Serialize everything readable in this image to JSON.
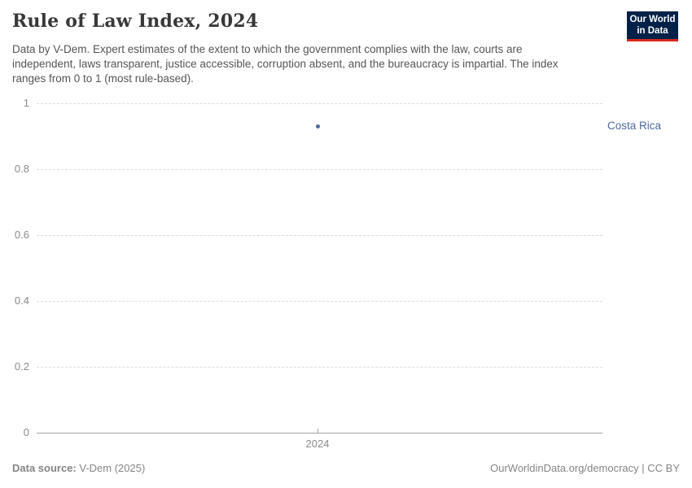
{
  "header": {
    "title": "Rule of Law Index, 2024",
    "subtitle": "Data by V-Dem. Expert estimates of the extent to which the government complies with the law, courts are independent, laws transparent, justice accessible, corruption absent, and the bureaucracy is impartial. The index ranges from 0 to 1 (most rule-based).",
    "logo": {
      "line1": "Our World",
      "line2": "in Data",
      "bg_color": "#002147",
      "accent_color": "#d9281f"
    }
  },
  "chart_data": {
    "type": "scatter",
    "title": "Rule of Law Index, 2024",
    "x": [
      2024
    ],
    "xticklabels": [
      "2024"
    ],
    "series": [
      {
        "name": "Costa Rica",
        "values": [
          0.93
        ],
        "color": "#4c6a9c"
      }
    ],
    "xlabel": "",
    "ylabel": "",
    "ylim": [
      0,
      1
    ],
    "yticks": [
      0,
      0.2,
      0.4,
      0.6,
      0.8,
      1
    ],
    "grid": "horizontal-dashed",
    "legend_position": "right-of-point"
  },
  "footer": {
    "source_label": "Data source:",
    "source_value": "V-Dem (2025)",
    "credit": "OurWorldinData.org/democracy | CC BY"
  }
}
